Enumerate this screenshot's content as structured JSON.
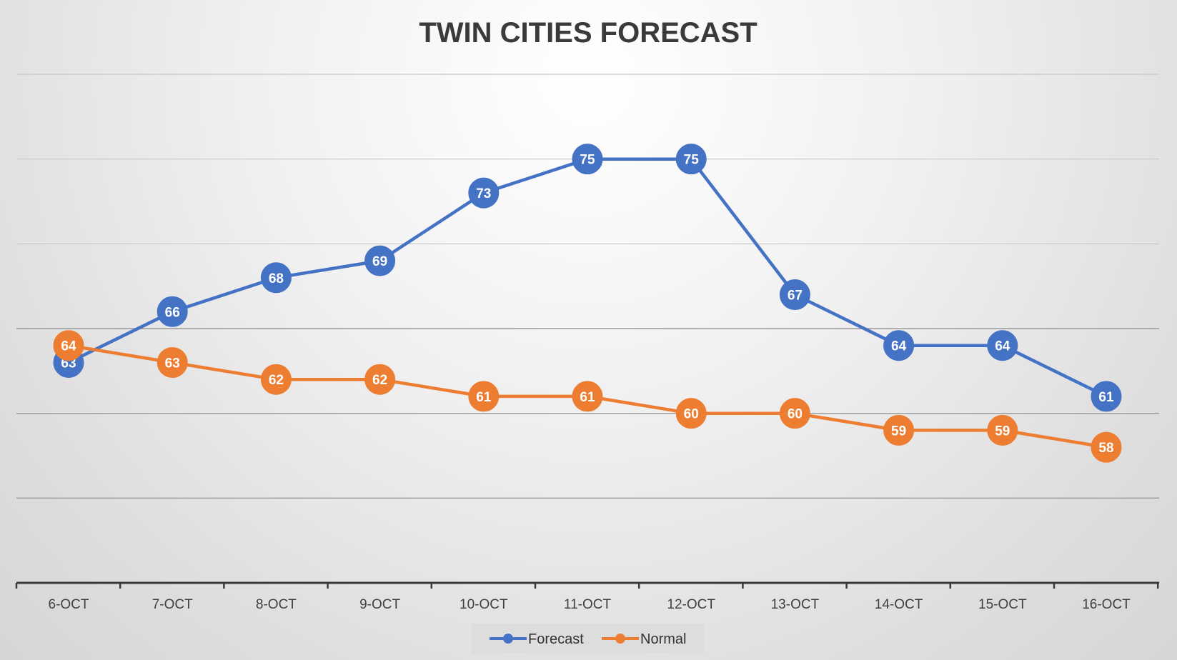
{
  "chart_data": {
    "type": "line",
    "title": "TWIN CITIES FORECAST",
    "xlabel": "",
    "ylabel": "",
    "categories": [
      "6-OCT",
      "7-OCT",
      "8-OCT",
      "9-OCT",
      "10-OCT",
      "11-OCT",
      "12-OCT",
      "13-OCT",
      "14-OCT",
      "15-OCT",
      "16-OCT"
    ],
    "series": [
      {
        "name": "Forecast",
        "color": "#4472c4",
        "values": [
          63,
          66,
          68,
          69,
          73,
          75,
          75,
          67,
          64,
          64,
          61
        ]
      },
      {
        "name": "Normal",
        "color": "#ed7d31",
        "values": [
          64,
          63,
          62,
          62,
          61,
          61,
          60,
          60,
          59,
          59,
          58
        ]
      }
    ],
    "ylim": [
      50,
      80
    ],
    "y_gridline_step": 5,
    "grid": true,
    "y_tick_labels_visible": false,
    "data_labels": true,
    "legend_position": "bottom"
  }
}
